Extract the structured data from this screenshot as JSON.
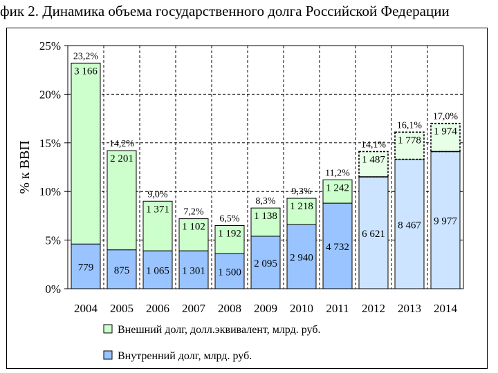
{
  "title": "фик 2. Динамика объема государственного долга Российской Федерации",
  "chart_data": {
    "type": "bar",
    "stacked": true,
    "ylabel": "% к ВВП",
    "ylim": [
      0,
      25
    ],
    "yticks": [
      "0%",
      "5%",
      "10%",
      "15%",
      "20%",
      "25%"
    ],
    "grid": "dashed",
    "legend_position": "bottom",
    "categories": [
      "2004",
      "2005",
      "2006",
      "2007",
      "2008",
      "2009",
      "2010",
      "2011",
      "2012",
      "2013",
      "2014"
    ],
    "forecast_from_index": 8,
    "series": [
      {
        "name": "Внутренний долг, млрд. руб.",
        "color": "#99c4ff",
        "forecast_color": "#cce4ff",
        "values": [
          4.6,
          4.0,
          3.9,
          3.9,
          3.6,
          5.4,
          6.6,
          8.8,
          11.5,
          13.3,
          14.1
        ],
        "labels": [
          "779",
          "875",
          "1 065",
          "1 301",
          "1 500",
          "2 095",
          "2 940",
          "4 732",
          "6 621",
          "8 467",
          "9 977"
        ]
      },
      {
        "name": "Внешний долг, долл.эквивалент, млрд. руб.",
        "color": "#ccffcc",
        "forecast_color": "#e6ffe6",
        "values": [
          18.6,
          10.2,
          5.1,
          3.3,
          2.9,
          2.9,
          2.7,
          2.4,
          2.6,
          2.8,
          2.9
        ],
        "labels": [
          "3 166",
          "2 201",
          "1 371",
          "1 102",
          "1 192",
          "1 138",
          "1 218",
          "1 242",
          "1 487",
          "1 778",
          "1 974"
        ]
      }
    ],
    "totals": [
      "23,2%",
      "14,2%",
      "9,0%",
      "7,2%",
      "6,5%",
      "8,3%",
      "9,3%",
      "11,2%",
      "14,1%",
      "16,1%",
      "17,0%"
    ]
  }
}
